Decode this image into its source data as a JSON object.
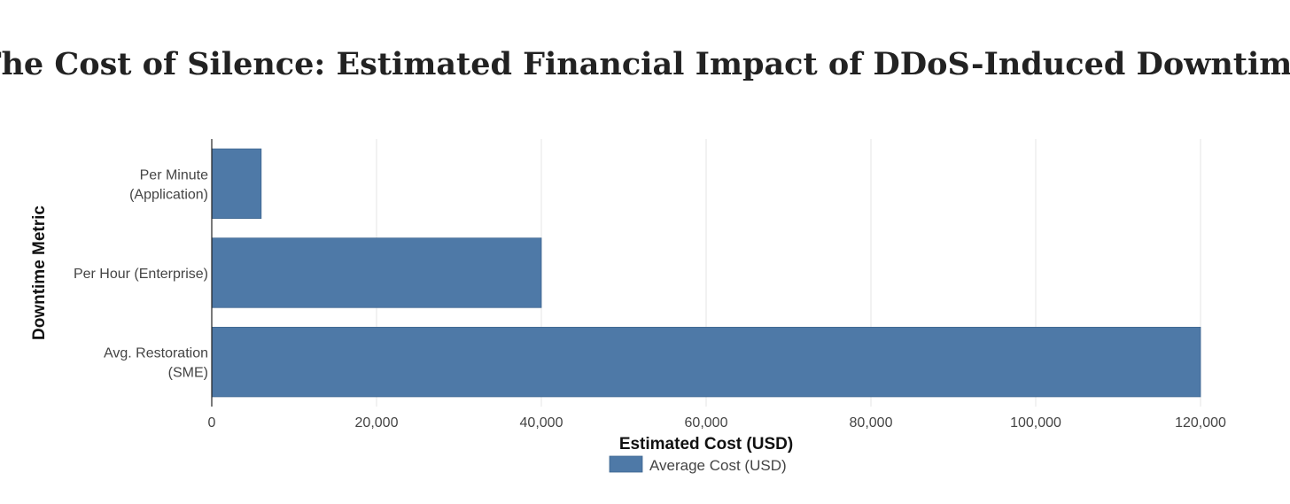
{
  "chart_data": {
    "type": "bar",
    "orientation": "horizontal",
    "title": "The Cost of Silence: Estimated Financial Impact of DDoS-Induced Downtime",
    "xlabel": "Estimated Cost (USD)",
    "ylabel": "Downtime Metric",
    "categories": [
      [
        "Per Minute",
        "(Application)"
      ],
      [
        "Per Hour (Enterprise)"
      ],
      [
        "Avg. Restoration",
        "(SME)"
      ]
    ],
    "series": [
      {
        "name": "Average Cost (USD)",
        "values": [
          6000,
          40000,
          120000
        ],
        "color": "#4e79a7"
      }
    ],
    "xlim": [
      0,
      120000
    ],
    "xticks": [
      0,
      20000,
      40000,
      60000,
      80000,
      100000,
      120000
    ],
    "xtick_labels": [
      "0",
      "20,000",
      "40,000",
      "60,000",
      "80,000",
      "100,000",
      "120,000"
    ],
    "grid": true,
    "legend": "bottom-center",
    "colors": {
      "bar": "#4e79a7",
      "bar_border": "#3e6690",
      "grid": "#e5e5e5",
      "axis": "#222222"
    }
  }
}
